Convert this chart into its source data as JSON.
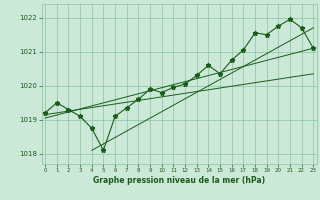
{
  "hours": [
    0,
    1,
    2,
    3,
    4,
    5,
    6,
    7,
    8,
    9,
    10,
    11,
    12,
    13,
    14,
    15,
    16,
    17,
    18,
    19,
    20,
    21,
    22,
    23
  ],
  "pressure": [
    1019.2,
    1019.5,
    1019.3,
    1019.1,
    1018.75,
    1018.1,
    1019.1,
    1019.35,
    1019.6,
    1019.9,
    1019.8,
    1019.95,
    1020.05,
    1020.3,
    1020.6,
    1020.35,
    1020.75,
    1021.05,
    1021.55,
    1021.5,
    1021.75,
    1021.95,
    1021.7,
    1021.1
  ],
  "trend_line1_x": [
    0,
    23
  ],
  "trend_line1_y": [
    1019.05,
    1021.1
  ],
  "trend_line2_x": [
    0,
    23
  ],
  "trend_line2_y": [
    1019.15,
    1020.35
  ],
  "trend_line3_x": [
    4,
    23
  ],
  "trend_line3_y": [
    1018.1,
    1021.7
  ],
  "ylim": [
    1017.7,
    1022.4
  ],
  "xlim": [
    -0.3,
    23.3
  ],
  "yticks": [
    1018,
    1019,
    1020,
    1021,
    1022
  ],
  "xtick_labels": [
    "0",
    "1",
    "2",
    "3",
    "4",
    "5",
    "6",
    "7",
    "8",
    "9",
    "10",
    "11",
    "12",
    "13",
    "14",
    "15",
    "16",
    "17",
    "18",
    "19",
    "20",
    "21",
    "22",
    "23"
  ],
  "line_color": "#1a5c1a",
  "trend_color": "#1a5c1a",
  "bg_color": "#cce8d8",
  "grid_color": "#88c4a0",
  "title": "Graphe pression niveau de la mer (hPa)",
  "marker": "*",
  "marker_size": 3.5
}
